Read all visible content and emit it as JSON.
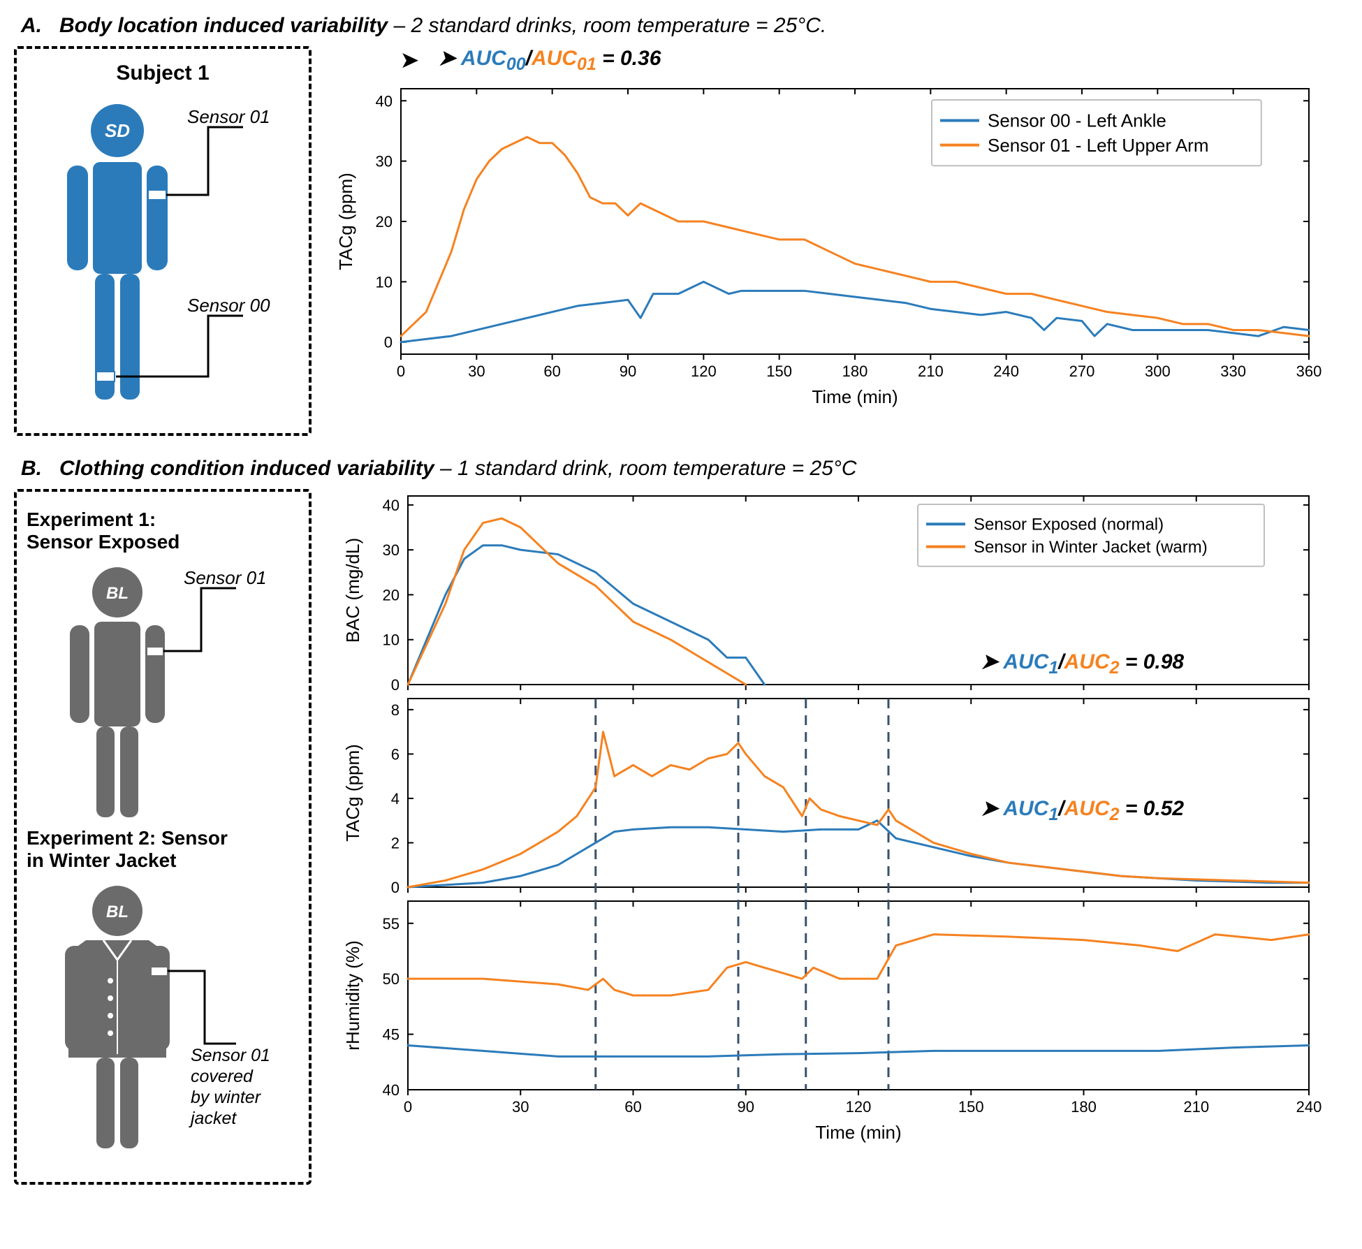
{
  "colors": {
    "blue": "#2b7bba",
    "orange": "#f58220",
    "gray": "#6b6b6b",
    "axis": "#000000",
    "bg": "#ffffff",
    "dash": "#3a506b"
  },
  "fonts": {
    "title_size": 30,
    "axis_label_size": 26,
    "tick_size": 22,
    "legend_size": 26,
    "annot_size": 30
  },
  "panelA": {
    "letter": "A.",
    "title_bold": "Body location induced variability",
    "title_cond": " – 2 standard drinks, room temperature = 25°C.",
    "subject": "Subject 1",
    "head_badge": "SD",
    "sensor00_label": "Sensor 00",
    "sensor01_label": "Sensor 01",
    "annot_html": "➤  <span style='color:#2b7bba'>AUC<sub>00</sub></span>/<span style='color:#f58220'>AUC<sub>01</sub></span> = 0.36",
    "chart": {
      "type": "line",
      "xlabel": "Time (min)",
      "ylabel": "TACg (ppm)",
      "xlim": [
        0,
        360
      ],
      "xtick_step": 30,
      "ylim": [
        -2,
        42
      ],
      "yticks": [
        0,
        10,
        20,
        30,
        40
      ],
      "legend": [
        {
          "label": "Sensor 00 - Left Ankle",
          "color": "#2b7bba"
        },
        {
          "label": "Sensor 01 - Left Upper Arm",
          "color": "#f58220"
        }
      ],
      "series": {
        "s00": {
          "color": "#2b7bba",
          "lw": 3,
          "x": [
            0,
            10,
            20,
            30,
            40,
            50,
            60,
            70,
            80,
            90,
            95,
            100,
            110,
            120,
            130,
            135,
            140,
            150,
            160,
            170,
            180,
            190,
            200,
            210,
            220,
            230,
            240,
            250,
            255,
            260,
            270,
            275,
            280,
            290,
            300,
            310,
            320,
            330,
            340,
            350,
            360
          ],
          "y": [
            0,
            0.5,
            1,
            2,
            3,
            4,
            5,
            6,
            6.5,
            7,
            4,
            8,
            8,
            10,
            8,
            8.5,
            8.5,
            8.5,
            8.5,
            8,
            7.5,
            7,
            6.5,
            5.5,
            5,
            4.5,
            5,
            4,
            2,
            4,
            3.5,
            1,
            3,
            2,
            2,
            2,
            2,
            1.5,
            1,
            2.5,
            2
          ]
        },
        "s01": {
          "color": "#f58220",
          "lw": 3,
          "x": [
            0,
            10,
            20,
            25,
            30,
            35,
            40,
            45,
            50,
            55,
            60,
            65,
            70,
            75,
            80,
            85,
            90,
            95,
            100,
            110,
            120,
            130,
            140,
            150,
            160,
            170,
            180,
            190,
            200,
            210,
            220,
            230,
            240,
            250,
            260,
            270,
            280,
            290,
            300,
            310,
            320,
            330,
            340,
            350,
            360
          ],
          "y": [
            1,
            5,
            15,
            22,
            27,
            30,
            32,
            33,
            34,
            33,
            33,
            31,
            28,
            24,
            23,
            23,
            21,
            23,
            22,
            20,
            20,
            19,
            18,
            17,
            17,
            15,
            13,
            12,
            11,
            10,
            10,
            9,
            8,
            8,
            7,
            6,
            5,
            4.5,
            4,
            3,
            3,
            2,
            2,
            1.5,
            1
          ]
        }
      }
    }
  },
  "panelB": {
    "letter": "B.",
    "title_bold": "Clothing condition induced variability",
    "title_cond": " – 1 standard drink, room temperature = 25°C",
    "exp1_title": "Experiment 1:\nSensor Exposed",
    "exp2_title": "Experiment 2: Sensor\nin Winter Jacket",
    "head_badge": "BL",
    "sensor_label": "Sensor 01",
    "cover_note": "Sensor 01 covered by winter jacket",
    "xlabel": "Time (min)",
    "xlim": [
      0,
      240
    ],
    "xtick_step": 30,
    "vlines": [
      50,
      88,
      106,
      128
    ],
    "legend": [
      {
        "label": "Sensor Exposed (normal)",
        "color": "#2b7bba"
      },
      {
        "label": "Sensor in Winter Jacket (warm)",
        "color": "#f58220"
      }
    ],
    "sub1": {
      "ylabel": "BAC (mg/dL)",
      "ylim": [
        0,
        42
      ],
      "yticks": [
        0,
        10,
        20,
        30,
        40
      ],
      "annot_html": "➤  <span style='color:#2b7bba'>AUC<sub>1</sub></span>/<span style='color:#f58220'>AUC<sub>2</sub></span> = 0.98",
      "series": {
        "exposed": {
          "color": "#2b7bba",
          "lw": 3,
          "x": [
            0,
            10,
            15,
            20,
            25,
            30,
            40,
            50,
            60,
            70,
            80,
            85,
            90,
            95
          ],
          "y": [
            0,
            20,
            28,
            31,
            31,
            30,
            29,
            25,
            18,
            14,
            10,
            6,
            6,
            0
          ]
        },
        "jacket": {
          "color": "#f58220",
          "lw": 3,
          "x": [
            0,
            10,
            15,
            20,
            25,
            30,
            40,
            50,
            60,
            70,
            80,
            90
          ],
          "y": [
            0,
            18,
            30,
            36,
            37,
            35,
            27,
            22,
            14,
            10,
            5,
            0
          ]
        }
      }
    },
    "sub2": {
      "ylabel": "TACg (ppm)",
      "ylim": [
        0,
        8.5
      ],
      "yticks": [
        0,
        2,
        4,
        6,
        8
      ],
      "annot_html": "➤  <span style='color:#2b7bba'>AUC<sub>1</sub></span>/<span style='color:#f58220'>AUC<sub>2</sub></span> = 0.52",
      "series": {
        "exposed": {
          "color": "#2b7bba",
          "lw": 3,
          "x": [
            0,
            20,
            30,
            40,
            50,
            55,
            60,
            70,
            80,
            90,
            100,
            110,
            120,
            125,
            130,
            140,
            150,
            160,
            170,
            180,
            190,
            200,
            210,
            220,
            230,
            240
          ],
          "y": [
            0,
            0.2,
            0.5,
            1,
            2,
            2.5,
            2.6,
            2.7,
            2.7,
            2.6,
            2.5,
            2.6,
            2.6,
            3,
            2.2,
            1.8,
            1.4,
            1.1,
            0.9,
            0.7,
            0.5,
            0.4,
            0.3,
            0.25,
            0.2,
            0.2
          ]
        },
        "jacket": {
          "color": "#f58220",
          "lw": 3,
          "x": [
            0,
            10,
            20,
            30,
            40,
            45,
            50,
            52,
            55,
            60,
            65,
            70,
            75,
            80,
            85,
            88,
            90,
            95,
            100,
            105,
            107,
            110,
            115,
            120,
            125,
            128,
            130,
            135,
            140,
            150,
            160,
            170,
            180,
            190,
            200,
            210,
            220,
            230,
            240
          ],
          "y": [
            0,
            0.3,
            0.8,
            1.5,
            2.5,
            3.2,
            4.5,
            7,
            5,
            5.5,
            5,
            5.5,
            5.3,
            5.8,
            6,
            6.5,
            6,
            5,
            4.5,
            3.2,
            4,
            3.5,
            3.2,
            3,
            2.8,
            3.5,
            3,
            2.5,
            2,
            1.5,
            1.1,
            0.9,
            0.7,
            0.5,
            0.4,
            0.35,
            0.3,
            0.25,
            0.2
          ]
        }
      }
    },
    "sub3": {
      "ylabel": "rHumidity (%)",
      "ylim": [
        40,
        57
      ],
      "yticks": [
        40,
        45,
        50,
        55
      ],
      "series": {
        "exposed": {
          "color": "#2b7bba",
          "lw": 3,
          "x": [
            0,
            20,
            40,
            60,
            80,
            100,
            120,
            140,
            160,
            180,
            200,
            220,
            240
          ],
          "y": [
            44,
            43.5,
            43,
            43,
            43,
            43.2,
            43.3,
            43.5,
            43.5,
            43.5,
            43.5,
            43.8,
            44
          ]
        },
        "jacket": {
          "color": "#f58220",
          "lw": 3,
          "x": [
            0,
            20,
            40,
            48,
            52,
            55,
            60,
            70,
            80,
            85,
            90,
            95,
            100,
            105,
            108,
            115,
            120,
            125,
            130,
            140,
            160,
            180,
            195,
            205,
            215,
            230,
            240
          ],
          "y": [
            50,
            50,
            49.5,
            49,
            50,
            49,
            48.5,
            48.5,
            49,
            51,
            51.5,
            51,
            50.5,
            50,
            51,
            50,
            50,
            50,
            53,
            54,
            53.8,
            53.5,
            53,
            52.5,
            54,
            53.5,
            54
          ]
        }
      }
    }
  }
}
